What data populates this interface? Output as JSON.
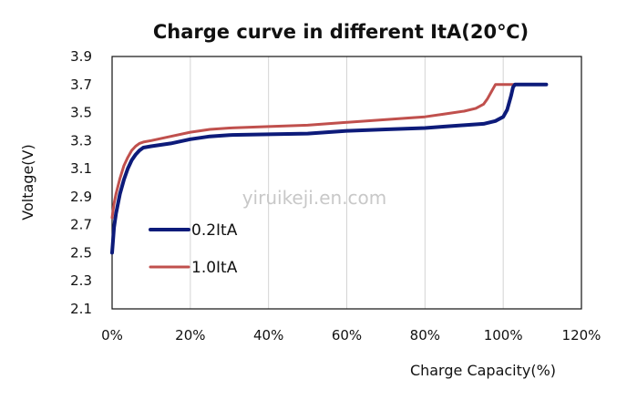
{
  "chart_data": {
    "type": "line",
    "title": "Charge curve in different ItA(20℃)",
    "xlabel": "Charge Capacity(%)",
    "ylabel": "Voltage(V)",
    "xlim": [
      0,
      120
    ],
    "ylim": [
      2.1,
      3.9
    ],
    "x_ticks": [
      "0%",
      "20%",
      "40%",
      "60%",
      "80%",
      "100%",
      "120%"
    ],
    "y_ticks": [
      "2.1",
      "2.3",
      "2.5",
      "2.7",
      "2.9",
      "3.1",
      "3.3",
      "3.5",
      "3.7",
      "3.9"
    ],
    "grid": "vertical",
    "legend_position": "center-left",
    "watermark": "yiruikeji.en.com",
    "series": [
      {
        "name": "0.2ItA",
        "color": "#0d1b7a",
        "x": [
          0,
          0.5,
          1,
          2,
          3,
          4,
          5,
          6,
          7,
          8,
          10,
          15,
          20,
          25,
          30,
          40,
          50,
          55,
          60,
          70,
          80,
          85,
          90,
          95,
          98,
          100,
          101,
          102,
          102.5,
          103,
          105,
          110,
          111
        ],
        "y": [
          2.5,
          2.68,
          2.78,
          2.92,
          3.02,
          3.1,
          3.16,
          3.2,
          3.23,
          3.25,
          3.26,
          3.28,
          3.31,
          3.33,
          3.34,
          3.345,
          3.35,
          3.36,
          3.37,
          3.38,
          3.39,
          3.4,
          3.41,
          3.42,
          3.44,
          3.47,
          3.52,
          3.62,
          3.68,
          3.7,
          3.7,
          3.7,
          3.7
        ]
      },
      {
        "name": "1.0ItA",
        "color": "#c0504d",
        "x": [
          0,
          0.5,
          1,
          2,
          3,
          4,
          5,
          6,
          7,
          8,
          10,
          15,
          20,
          25,
          30,
          40,
          50,
          60,
          70,
          80,
          85,
          90,
          93,
          95,
          96,
          97,
          98,
          100,
          105,
          110,
          111
        ],
        "y": [
          2.75,
          2.85,
          2.92,
          3.03,
          3.12,
          3.18,
          3.23,
          3.26,
          3.28,
          3.29,
          3.3,
          3.33,
          3.36,
          3.38,
          3.39,
          3.4,
          3.41,
          3.43,
          3.45,
          3.47,
          3.49,
          3.51,
          3.53,
          3.56,
          3.6,
          3.65,
          3.7,
          3.7,
          3.7,
          3.7,
          3.7
        ]
      }
    ]
  }
}
